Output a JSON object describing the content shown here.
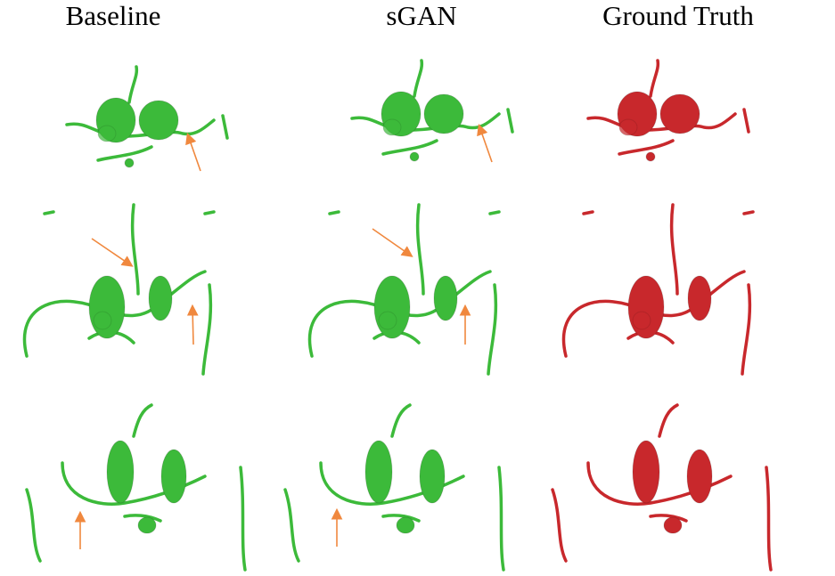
{
  "titles": [
    "Baseline",
    "sGAN",
    "Ground Truth"
  ]
}
